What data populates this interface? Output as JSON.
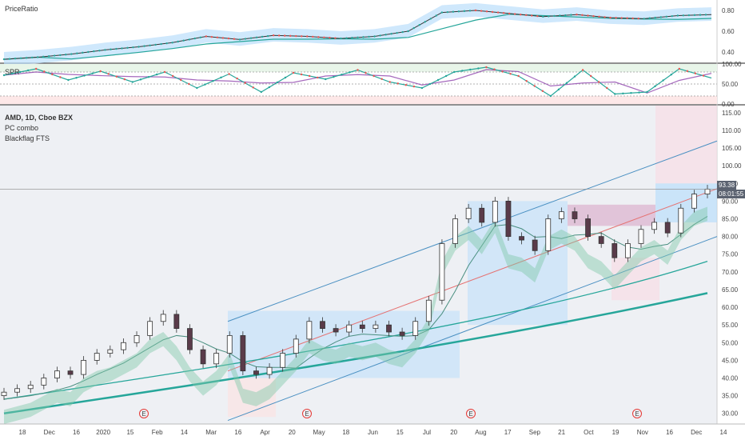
{
  "chart_data": [
    {
      "type": "line",
      "title": "PriceRatio",
      "y_ticks": [
        "0.80",
        "0.60",
        "0.40"
      ],
      "ylim": [
        0.3,
        0.9
      ],
      "series": [
        {
          "values": [
            0.33,
            0.35,
            0.38,
            0.42,
            0.45,
            0.49,
            0.55,
            0.52,
            0.56,
            0.55,
            0.53,
            0.55,
            0.6,
            0.78,
            0.8,
            0.77,
            0.74,
            0.76,
            0.73,
            0.72,
            0.75,
            0.76
          ]
        }
      ],
      "colors": {
        "up": "#26a69a",
        "down": "#ef5350",
        "band": "#bbdefb"
      }
    },
    {
      "type": "line",
      "title": "SPR",
      "y_ticks": [
        "100.00",
        "50.00",
        "0.00"
      ],
      "ylim": [
        0,
        100
      ],
      "series": [
        {
          "values": [
            72,
            88,
            60,
            82,
            55,
            80,
            40,
            75,
            30,
            78,
            62,
            85,
            55,
            40,
            80,
            92,
            70,
            20,
            85,
            25,
            30,
            88,
            65
          ]
        }
      ],
      "grid": true
    },
    {
      "type": "candlestick",
      "title": "AMD, 1D, Cboe BZX",
      "legend": [
        "PC combo",
        "Blackflag FTS"
      ],
      "x_ticks": [
        "18",
        "Dec",
        "16",
        "2020",
        "15",
        "Feb",
        "14",
        "Mar",
        "16",
        "Apr",
        "20",
        "May",
        "18",
        "Jun",
        "15",
        "Jul",
        "20",
        "Aug",
        "17",
        "Sep",
        "21",
        "Oct",
        "19",
        "Nov",
        "16",
        "Dec",
        "14"
      ],
      "y_ticks": [
        "115.00",
        "110.00",
        "105.00",
        "100.00",
        "95.00",
        "90.00",
        "85.00",
        "80.00",
        "75.00",
        "70.00",
        "65.00",
        "60.00",
        "55.00",
        "50.00",
        "45.00",
        "40.00",
        "35.00",
        "30.00"
      ],
      "ylim": [
        27,
        117
      ],
      "current_price": "93.38",
      "price_label_2": "08:01:55",
      "earnings_marker": "E",
      "close_path": [
        36,
        37,
        38,
        40,
        42,
        41,
        45,
        47,
        48,
        50,
        52,
        56,
        58,
        54,
        48,
        44,
        47,
        52,
        42,
        41,
        43,
        47,
        51,
        56,
        54,
        53,
        55,
        54,
        55,
        53,
        52,
        56,
        62,
        78,
        85,
        88,
        84,
        90,
        80,
        79,
        76,
        85,
        87,
        85,
        80,
        78,
        74,
        78,
        82,
        84,
        81,
        88,
        92,
        93.4
      ],
      "colors": {
        "up": "#26a69a",
        "down": "#ef5350",
        "ma_teal": "#26a69a",
        "channel": "#4a90c2",
        "mid": "#e57373",
        "band": "#bbdefb"
      }
    }
  ]
}
